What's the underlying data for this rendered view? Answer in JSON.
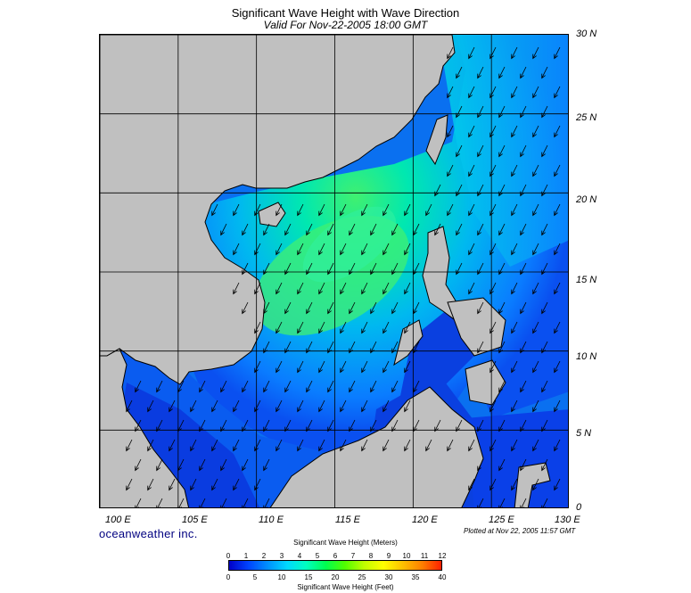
{
  "header": {
    "title": "Significant Wave Height with Wave Direction",
    "subtitle": "Valid For Nov-22-2005 18:00 GMT"
  },
  "axes": {
    "lat_labels": [
      "30 N",
      "25 N",
      "20 N",
      "15 N",
      "10 N",
      "5 N",
      "0"
    ],
    "lon_labels": [
      "100 E",
      "105 E",
      "110 E",
      "115 E",
      "120 E",
      "125 E",
      "130 E"
    ],
    "lat_range": [
      0,
      30
    ],
    "lon_range": [
      100,
      130
    ],
    "grid_spacing_deg": 5
  },
  "footer": {
    "brand": "oceanweather inc.",
    "plotted": "Plotted at Nov 22, 2005 11:57 GMT"
  },
  "legend": {
    "meters_title": "Significant Wave Height (Meters)",
    "feet_title": "Significant Wave Height (Feet)",
    "meter_ticks": [
      "0",
      "1",
      "2",
      "3",
      "4",
      "5",
      "6",
      "7",
      "8",
      "9",
      "10",
      "11",
      "12"
    ],
    "feet_ticks": [
      "0",
      "5",
      "10",
      "15",
      "20",
      "25",
      "30",
      "35",
      "40"
    ],
    "colors": [
      "#0000c8",
      "#0044ff",
      "#0090ff",
      "#00d8ff",
      "#00ffc0",
      "#00ff50",
      "#50ff00",
      "#c0ff00",
      "#ffff00",
      "#ffc000",
      "#ff8000",
      "#ff2000"
    ]
  },
  "colors": {
    "land": "#c0c0c0",
    "deep_low": "#0a28d8",
    "wave_mid": "#0a90ff",
    "wave_high": "#00e8c8",
    "wave_peak": "#40f070"
  },
  "wave_direction": "southwest"
}
